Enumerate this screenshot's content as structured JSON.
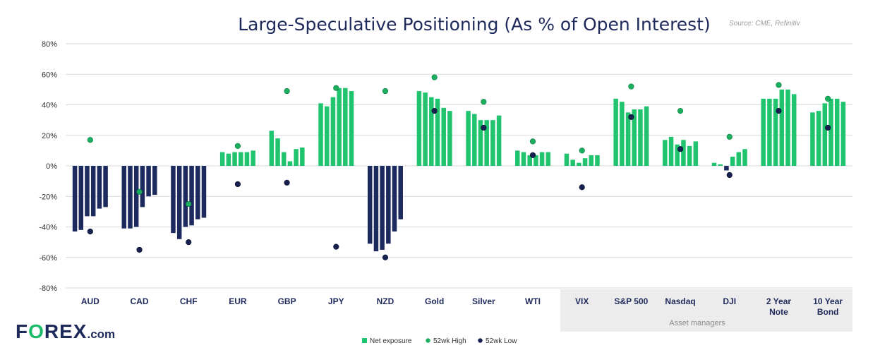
{
  "chart_data": {
    "type": "bar",
    "title": "Large-Speculative Positioning (As % of Open Interest)",
    "source": "Source: CME, Refinitiv",
    "ylim": [
      -80,
      80
    ],
    "yticks": [
      "80%",
      "60%",
      "40%",
      "20%",
      "0%",
      "-20%",
      "-40%",
      "-60%",
      "-80%"
    ],
    "ytick_values": [
      80,
      60,
      40,
      20,
      0,
      -20,
      -40,
      -60,
      -80
    ],
    "grid": true,
    "legend_position": "bottom-center",
    "colors": {
      "positive": "#21c46e",
      "negative": "#1d2a5e",
      "high_marker": "#1aaf5e",
      "low_marker": "#16214f",
      "grid": "#d9d9d9",
      "group_bg": "#ececec"
    },
    "group_label": "Asset managers",
    "legend": [
      "Net exposure",
      "52wk High",
      "52wk Low"
    ],
    "categories": [
      {
        "label": [
          "AUD"
        ],
        "values": [
          -43,
          -42,
          -33,
          -33,
          -28,
          -27
        ],
        "high": 17,
        "low": -43
      },
      {
        "label": [
          "CAD"
        ],
        "values": [
          -41,
          -41,
          -40,
          -27,
          -20,
          -19
        ],
        "high": -17,
        "low": -55
      },
      {
        "label": [
          "CHF"
        ],
        "values": [
          -44,
          -48,
          -40,
          -39,
          -35,
          -34
        ],
        "high": -25,
        "low": -50
      },
      {
        "label": [
          "EUR"
        ],
        "values": [
          9,
          8,
          9,
          9,
          9,
          10
        ],
        "high": 13,
        "low": -12
      },
      {
        "label": [
          "GBP"
        ],
        "values": [
          23,
          18,
          9,
          3,
          11,
          12
        ],
        "high": 49,
        "low": -11
      },
      {
        "label": [
          "JPY"
        ],
        "values": [
          41,
          39,
          45,
          51,
          51,
          49
        ],
        "high": 51,
        "low": -53
      },
      {
        "label": [
          "NZD"
        ],
        "values": [
          -51,
          -56,
          -55,
          -51,
          -43,
          -35
        ],
        "high": 49,
        "low": -60
      },
      {
        "label": [
          "Gold"
        ],
        "values": [
          49,
          48,
          45,
          44,
          38,
          36
        ],
        "high": 58,
        "low": 36
      },
      {
        "label": [
          "Silver"
        ],
        "values": [
          36,
          34,
          30,
          30,
          30,
          33
        ],
        "high": 42,
        "low": 25
      },
      {
        "label": [
          "WTI"
        ],
        "values": [
          10,
          9,
          7,
          7,
          9,
          9
        ],
        "high": 16,
        "low": 7
      },
      {
        "label": [
          "VIX"
        ],
        "values": [
          8,
          4,
          2,
          5,
          7,
          7
        ],
        "high": 10,
        "low": -14
      },
      {
        "label": [
          "S&P 500"
        ],
        "values": [
          44,
          42,
          35,
          37,
          37,
          39
        ],
        "high": 52,
        "low": 32
      },
      {
        "label": [
          "Nasdaq"
        ],
        "values": [
          17,
          19,
          14,
          17,
          13,
          16
        ],
        "high": 36,
        "low": 11
      },
      {
        "label": [
          "DJI"
        ],
        "values": [
          2,
          1,
          -3,
          6,
          9,
          11
        ],
        "high": 19,
        "low": -6
      },
      {
        "label": [
          "2 Year",
          "Note"
        ],
        "values": [
          44,
          44,
          44,
          50,
          50,
          47
        ],
        "high": 53,
        "low": 36
      },
      {
        "label": [
          "10 Year",
          "Bond"
        ],
        "values": [
          35,
          36,
          41,
          44,
          44,
          42
        ],
        "high": 44,
        "low": 25
      }
    ]
  },
  "logo": {
    "part1": "F",
    "part2": "O",
    "part3": "REX",
    "part4": ".com"
  }
}
